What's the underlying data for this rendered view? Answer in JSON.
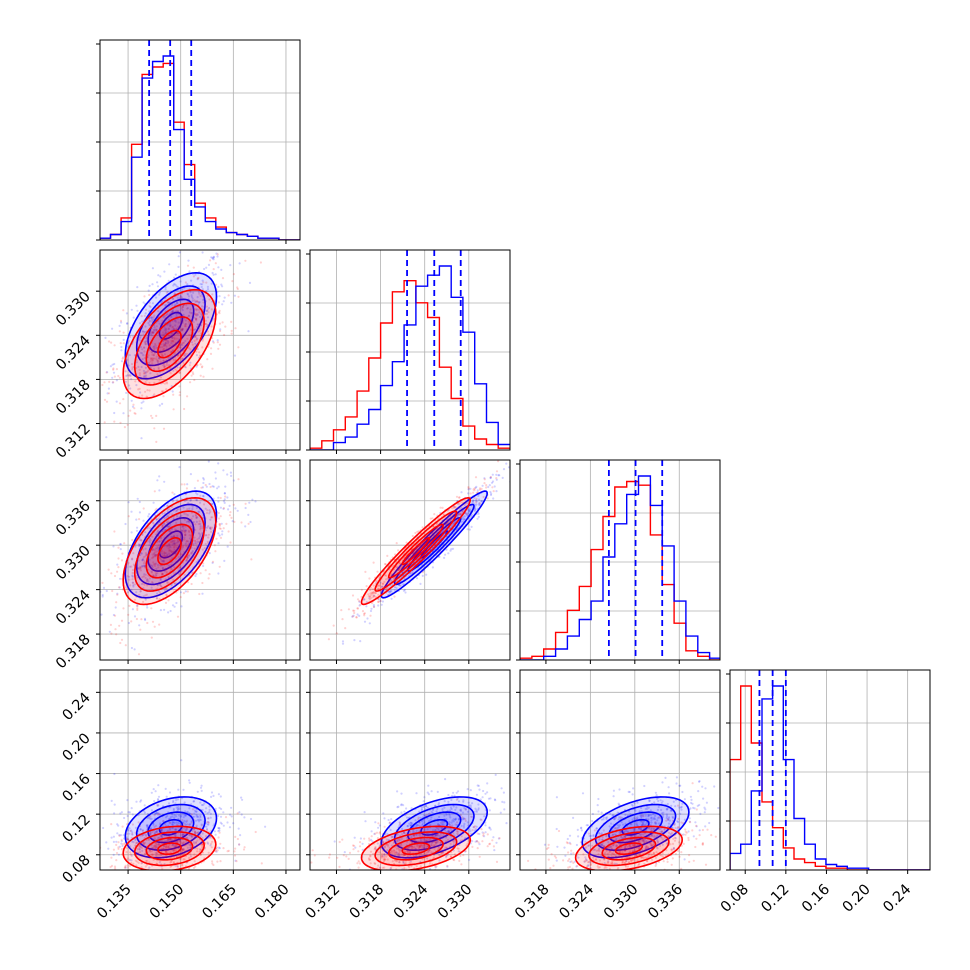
{
  "colors": {
    "series_a": "#0000ff",
    "series_b": "#ff0000",
    "quantile_lines": "#0000ff",
    "grid": "#b0b0b0",
    "axes": "#000000"
  },
  "chart_data": {
    "type": "corner",
    "description_of_layout": "4x4 lower-triangular corner plot of posterior samples for two series (blue, red): histograms on the diagonal, 2D scatter + density contours below.",
    "grid": true,
    "series": [
      {
        "color": "#0000ff"
      },
      {
        "color": "#ff0000"
      }
    ],
    "parameters": [
      {
        "range": [
          0.127,
          0.184
        ],
        "ticks": [
          0.135,
          0.15,
          0.165,
          0.18
        ],
        "tick_labels": [
          "0.135",
          "0.150",
          "0.165",
          "0.180"
        ],
        "quantiles_blue": [
          0.141,
          0.147,
          0.153
        ]
      },
      {
        "range": [
          0.3084,
          0.3356
        ],
        "ticks": [
          0.312,
          0.318,
          0.324,
          0.33
        ],
        "tick_labels": [
          "0.312",
          "0.318",
          "0.324",
          "0.330"
        ],
        "quantiles_blue": [
          0.3216,
          0.3253,
          0.3289
        ]
      },
      {
        "range": [
          0.3145,
          0.3415
        ],
        "ticks": [
          0.318,
          0.324,
          0.33,
          0.336
        ],
        "tick_labels": [
          "0.318",
          "0.324",
          "0.330",
          "0.336"
        ],
        "quantiles_blue": [
          0.3265,
          0.3301,
          0.3337
        ]
      },
      {
        "range": [
          0.065,
          0.262
        ],
        "ticks": [
          0.08,
          0.12,
          0.16,
          0.2,
          0.24
        ],
        "tick_labels": [
          "0.08",
          "0.12",
          "0.16",
          "0.20",
          "0.24"
        ],
        "quantiles_blue": [
          0.094,
          0.107,
          0.12
        ]
      }
    ],
    "histograms": [
      {
        "bin_edges": [
          0.127,
          0.13,
          0.133,
          0.136,
          0.139,
          0.142,
          0.145,
          0.148,
          0.151,
          0.154,
          0.157,
          0.16,
          0.163,
          0.166,
          0.169,
          0.172,
          0.175,
          0.178,
          0.181,
          0.184
        ],
        "blue": [
          1,
          3,
          10,
          45,
          88,
          97,
          100,
          60,
          33,
          18,
          10,
          6,
          4,
          3,
          2,
          1,
          1,
          0,
          0
        ],
        "red": [
          1,
          3,
          12,
          52,
          90,
          94,
          96,
          64,
          41,
          20,
          12,
          7,
          4,
          3,
          2,
          1,
          1,
          0,
          0
        ]
      },
      {
        "bin_edges": [
          0.3084,
          0.31,
          0.3116,
          0.3132,
          0.3148,
          0.3164,
          0.318,
          0.3196,
          0.3212,
          0.3228,
          0.3244,
          0.326,
          0.3276,
          0.3292,
          0.3308,
          0.3324,
          0.334,
          0.3356
        ],
        "blue": [
          0,
          0,
          4,
          7,
          14,
          22,
          35,
          48,
          68,
          89,
          95,
          100,
          83,
          64,
          36,
          15,
          3
        ],
        "red": [
          1,
          5,
          11,
          18,
          32,
          50,
          69,
          86,
          92,
          80,
          72,
          45,
          28,
          13,
          6,
          3,
          1
        ]
      },
      {
        "bin_edges": [
          0.3145,
          0.3161,
          0.3177,
          0.3193,
          0.3209,
          0.3225,
          0.3241,
          0.3257,
          0.3273,
          0.3289,
          0.3305,
          0.3321,
          0.3337,
          0.3353,
          0.3369,
          0.3385,
          0.3401,
          0.3415
        ],
        "blue": [
          0,
          0,
          2,
          6,
          13,
          22,
          32,
          56,
          74,
          90,
          100,
          84,
          62,
          32,
          13,
          4,
          1
        ],
        "red": [
          1,
          2,
          6,
          15,
          27,
          40,
          60,
          78,
          94,
          97,
          95,
          68,
          41,
          20,
          5,
          2,
          0
        ]
      },
      {
        "bin_edges": [
          0.065,
          0.0755,
          0.086,
          0.0965,
          0.107,
          0.1175,
          0.128,
          0.1385,
          0.149,
          0.1595,
          0.17,
          0.1805,
          0.191,
          0.2015,
          0.212,
          0.2225,
          0.233,
          0.2435,
          0.254,
          0.262
        ],
        "blue": [
          9,
          14,
          43,
          93,
          100,
          60,
          28,
          14,
          6,
          3,
          2,
          1,
          1,
          0,
          0,
          0,
          0,
          0,
          0
        ],
        "red": [
          60,
          100,
          69,
          37,
          23,
          12,
          6,
          4,
          2,
          1,
          1,
          0,
          0,
          0,
          0,
          0,
          0,
          0,
          0
        ]
      }
    ],
    "pairs": [
      {
        "x": 0,
        "y": 1,
        "blue": {
          "center": [
            0.1472,
            0.3253
          ],
          "sd": [
            0.0065,
            0.0036
          ],
          "corr": 0.55
        },
        "red": {
          "center": [
            0.1468,
            0.3228
          ],
          "sd": [
            0.0066,
            0.0037
          ],
          "corr": 0.55
        }
      },
      {
        "x": 0,
        "y": 2,
        "blue": {
          "center": [
            0.1472,
            0.3301
          ],
          "sd": [
            0.0065,
            0.0036
          ],
          "corr": 0.55
        },
        "red": {
          "center": [
            0.1468,
            0.3292
          ],
          "sd": [
            0.0066,
            0.0036
          ],
          "corr": 0.55
        }
      },
      {
        "x": 0,
        "y": 3,
        "blue": {
          "center": [
            0.1472,
            0.107
          ],
          "sd": [
            0.0065,
            0.015
          ],
          "corr": 0.3
        },
        "red": {
          "center": [
            0.1468,
            0.086
          ],
          "sd": [
            0.0066,
            0.011
          ],
          "corr": 0.2
        }
      },
      {
        "x": 1,
        "y": 2,
        "blue": {
          "center": [
            0.3253,
            0.3301
          ],
          "sd": [
            0.0036,
            0.0036
          ],
          "corr": 0.96
        },
        "red": {
          "center": [
            0.3228,
            0.3292
          ],
          "sd": [
            0.0037,
            0.0036
          ],
          "corr": 0.96
        }
      },
      {
        "x": 1,
        "y": 3,
        "blue": {
          "center": [
            0.3253,
            0.107
          ],
          "sd": [
            0.0036,
            0.015
          ],
          "corr": 0.5
        },
        "red": {
          "center": [
            0.3228,
            0.086
          ],
          "sd": [
            0.0037,
            0.011
          ],
          "corr": 0.4
        }
      },
      {
        "x": 2,
        "y": 3,
        "blue": {
          "center": [
            0.3301,
            0.107
          ],
          "sd": [
            0.0036,
            0.015
          ],
          "corr": 0.5
        },
        "red": {
          "center": [
            0.3292,
            0.086
          ],
          "sd": [
            0.0036,
            0.011
          ],
          "corr": 0.4
        }
      }
    ]
  }
}
